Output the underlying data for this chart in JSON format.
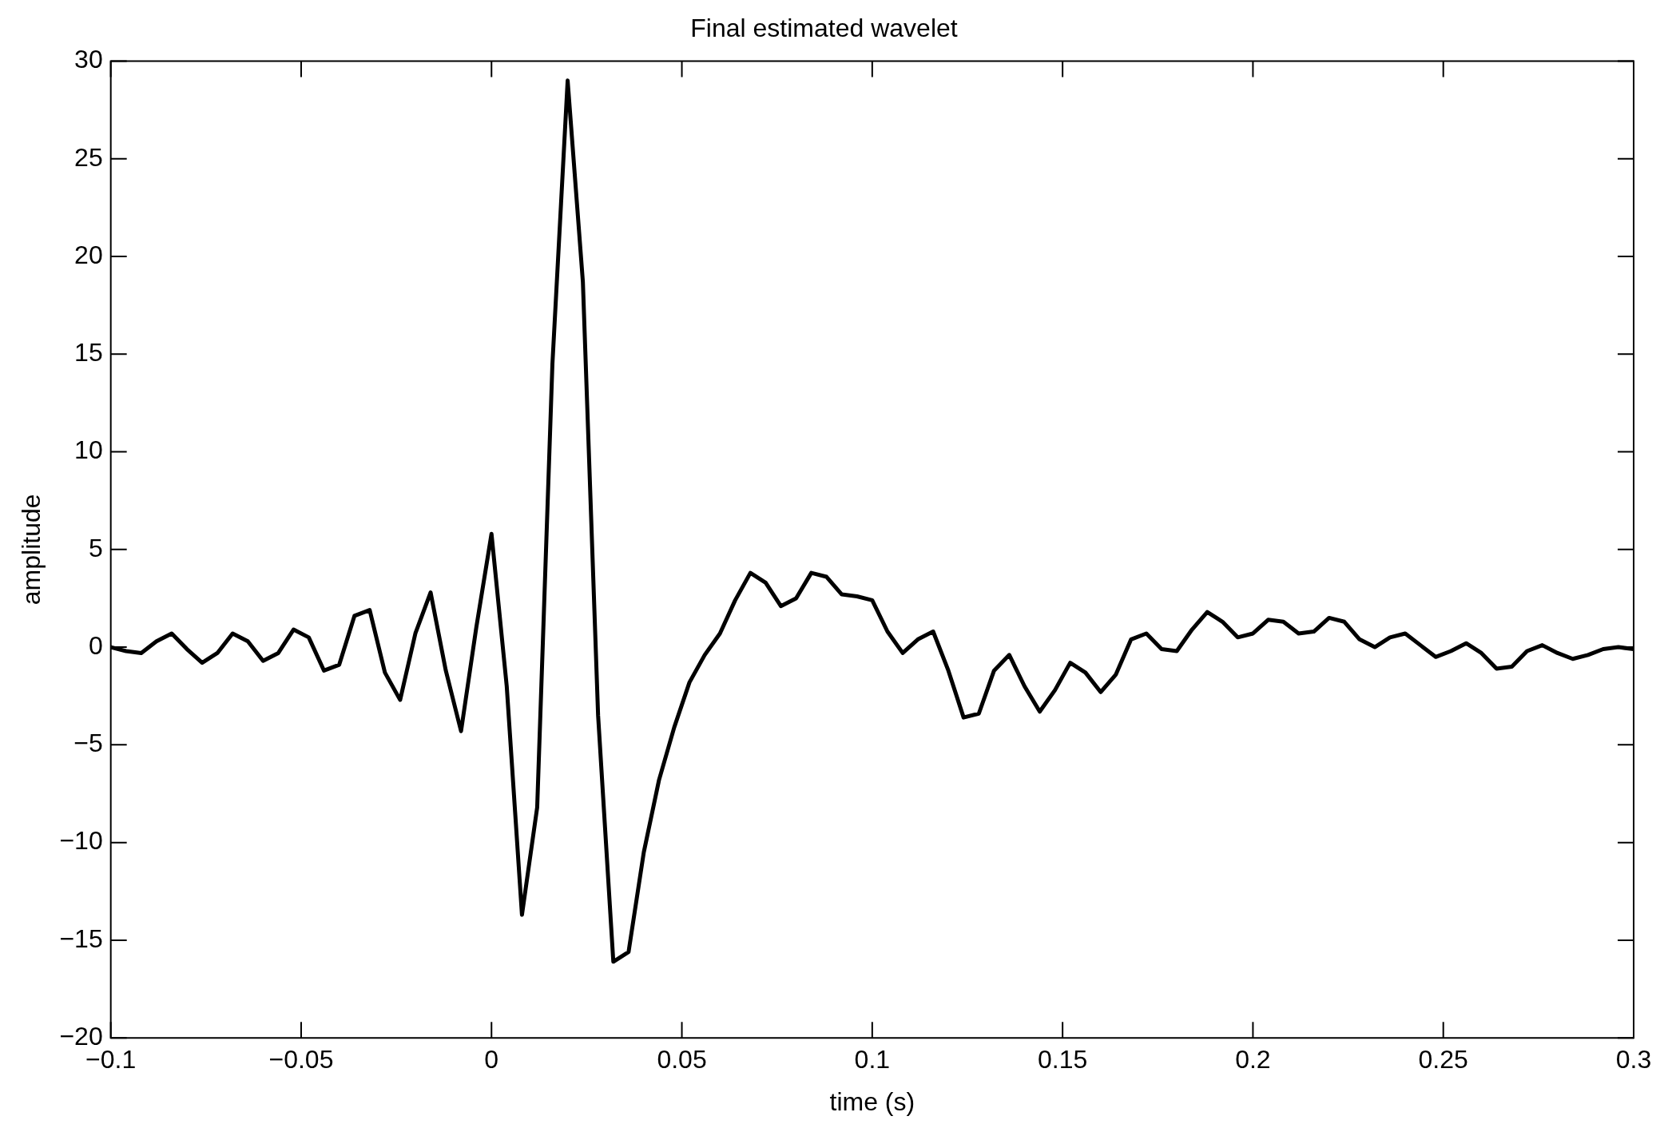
{
  "chart_data": {
    "type": "line",
    "title": "Final estimated wavelet",
    "xlabel": "time (s)",
    "ylabel": "amplitude",
    "x": [
      -0.1,
      -0.096,
      -0.092,
      -0.088,
      -0.084,
      -0.08,
      -0.076,
      -0.072,
      -0.068,
      -0.064,
      -0.06,
      -0.056,
      -0.052,
      -0.048,
      -0.044,
      -0.04,
      -0.036,
      -0.032,
      -0.028,
      -0.024,
      -0.02,
      -0.016,
      -0.012,
      -0.008,
      -0.004,
      0,
      0.004,
      0.008,
      0.012,
      0.016,
      0.02,
      0.024,
      0.028,
      0.032,
      0.036,
      0.04,
      0.044,
      0.048,
      0.052,
      0.056,
      0.06,
      0.064,
      0.068,
      0.072,
      0.076,
      0.08,
      0.084,
      0.088,
      0.092,
      0.096,
      0.1,
      0.104,
      0.108,
      0.112,
      0.116,
      0.12,
      0.124,
      0.128,
      0.132,
      0.136,
      0.14,
      0.144,
      0.148,
      0.152,
      0.156,
      0.16,
      0.164,
      0.168,
      0.172,
      0.176,
      0.18,
      0.184,
      0.188,
      0.192,
      0.196,
      0.2,
      0.204,
      0.208,
      0.212,
      0.216,
      0.22,
      0.224,
      0.228,
      0.232,
      0.236,
      0.24,
      0.244,
      0.248,
      0.252,
      0.256,
      0.26,
      0.264,
      0.268,
      0.272,
      0.276,
      0.28,
      0.284,
      0.288,
      0.292,
      0.296,
      0.3
    ],
    "series": [
      {
        "color": "#000000",
        "values": [
          0.0,
          -0.2,
          -0.3,
          0.3,
          0.7,
          -0.1,
          -0.8,
          -0.3,
          0.7,
          0.3,
          -0.7,
          -0.3,
          0.9,
          0.5,
          -1.2,
          -0.9,
          1.6,
          1.9,
          -1.3,
          -2.7,
          0.7,
          2.8,
          -1.2,
          -4.3,
          1.0,
          5.8,
          -2.0,
          -13.7,
          -8.2,
          14.5,
          29,
          18.7,
          -3.5,
          -16.1,
          -15.6,
          -10.5,
          -6.8,
          -4.1,
          -1.8,
          -0.4,
          0.7,
          2.4,
          3.8,
          3.3,
          2.1,
          2.5,
          3.8,
          3.6,
          2.7,
          2.6,
          2.4,
          0.8,
          -0.3,
          0.4,
          0.8,
          -1.2,
          -3.6,
          -3.4,
          -1.2,
          -0.4,
          -2.0,
          -3.3,
          -2.2,
          -0.8,
          -1.3,
          -2.3,
          -1.4,
          0.4,
          0.7,
          -0.1,
          -0.2,
          0.9,
          1.8,
          1.3,
          0.5,
          0.7,
          1.4,
          1.3,
          0.7,
          0.8,
          1.5,
          1.3,
          0.4,
          0.0,
          0.5,
          0.7,
          0.1,
          -0.5,
          -0.2,
          0.2,
          -0.3,
          -1.1,
          -1.0,
          -0.2,
          0.1,
          -0.3,
          -0.6,
          -0.4,
          -0.1,
          0.0,
          -0.1
        ]
      }
    ],
    "xlim": [
      -0.1,
      0.3
    ],
    "xticks": [
      -0.1,
      -0.05,
      0,
      0.05,
      0.1,
      0.15,
      0.2,
      0.25,
      0.3
    ],
    "ylim": [
      -20,
      30
    ],
    "yticks": [
      -20,
      -15,
      -10,
      -5,
      0,
      5,
      10,
      15,
      20,
      25,
      30
    ],
    "grid": false,
    "legend": false,
    "marker": "none",
    "line_style": "solid"
  }
}
